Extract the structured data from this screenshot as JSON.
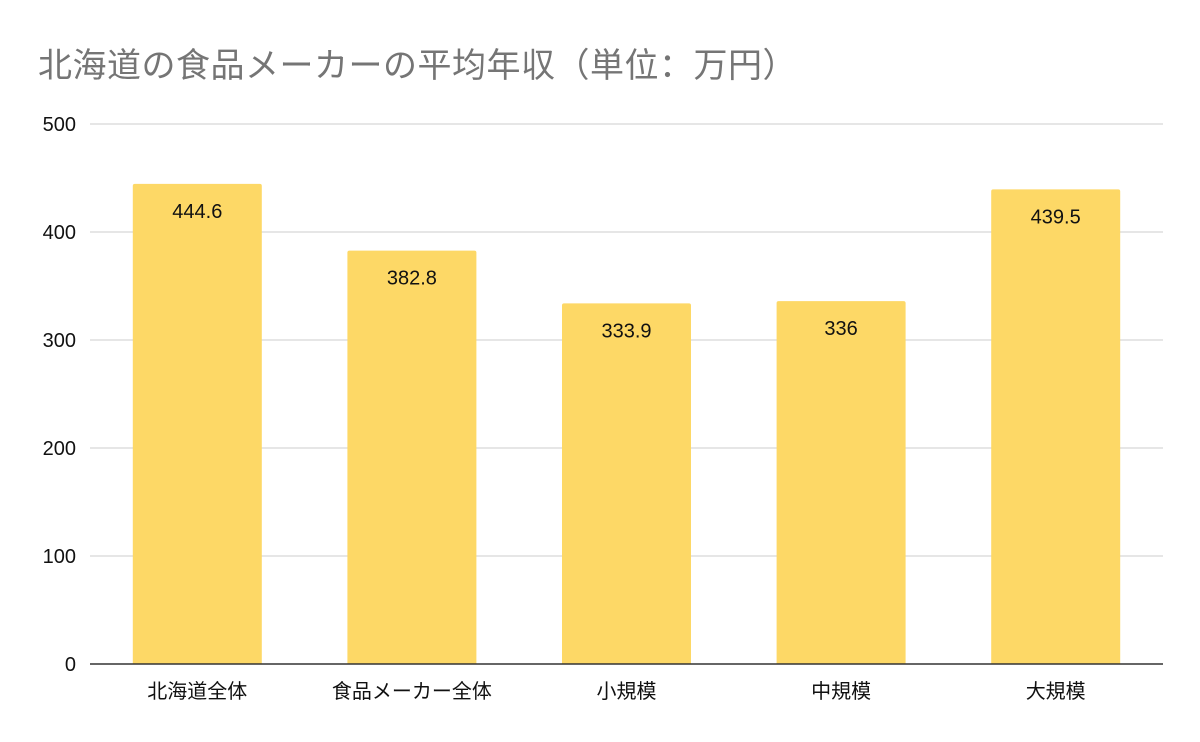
{
  "chart_data": {
    "type": "bar",
    "title": "北海道の食品メーカーの平均年収（単位：万円）",
    "categories": [
      "北海道全体",
      "食品メーカー全体",
      "小規模",
      "中規模",
      "大規模"
    ],
    "values": [
      444.6,
      382.8,
      333.9,
      336,
      439.5
    ],
    "value_labels": [
      "444.6",
      "382.8",
      "333.9",
      "336",
      "439.5"
    ],
    "ylim": [
      0,
      500
    ],
    "yticks": [
      0,
      100,
      200,
      300,
      400,
      500
    ],
    "ytick_labels": [
      "0",
      "100",
      "200",
      "300",
      "400",
      "500"
    ],
    "grid": true,
    "legend": "none",
    "bar_color": "#fdd866",
    "grid_color": "#cccccc",
    "axis_color": "#333333"
  }
}
